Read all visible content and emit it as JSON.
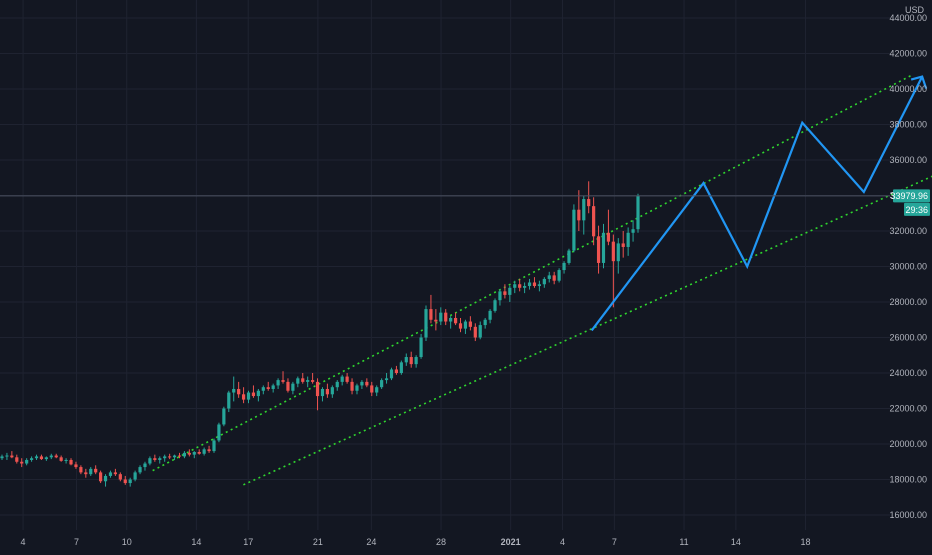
{
  "chart_data": {
    "type": "candlestick",
    "currency_label": "USD",
    "price_axis": {
      "ylim": [
        15000,
        44800
      ],
      "ticks": [
        16000,
        18000,
        20000,
        22000,
        24000,
        26000,
        28000,
        30000,
        32000,
        34000,
        36000,
        38000,
        40000,
        42000,
        44000
      ],
      "tick_labels": [
        "16000.00",
        "18000.00",
        "20000.00",
        "22000.00",
        "24000.00",
        "26000.00",
        "28000.00",
        "30000.00",
        "32000.00",
        "34000.00",
        "36000.00",
        "38000.00",
        "40000.00",
        "42000.00",
        "44000.00"
      ]
    },
    "time_axis": {
      "xlim": [
        0,
        54
      ],
      "ticks": [
        1,
        4,
        7,
        10,
        13,
        16,
        19,
        22,
        25,
        28,
        31,
        34,
        37,
        40,
        43,
        46,
        49,
        52
      ],
      "tick_labels": [
        "4",
        "7",
        "10",
        "14",
        "17",
        "21",
        "24",
        "28",
        "2021",
        "4",
        "7",
        "11",
        "14",
        "18"
      ]
    },
    "tick_label_positions_x": [
      1.3,
      4.6,
      7.7,
      12.0,
      15.2,
      19.5,
      22.8,
      27.1,
      31.4,
      34.6,
      37.8,
      42.1,
      45.3,
      49.6
    ],
    "last_price": {
      "value": 33979.96,
      "label": "33979.96",
      "countdown": "29:36"
    },
    "candles": [
      [
        19200,
        19400,
        19100,
        19300
      ],
      [
        19300,
        19500,
        19100,
        19350
      ],
      [
        19350,
        19600,
        19200,
        19250
      ],
      [
        19250,
        19400,
        18900,
        19000
      ],
      [
        19000,
        19200,
        18700,
        18900
      ],
      [
        18900,
        19200,
        18800,
        19100
      ],
      [
        19100,
        19300,
        19000,
        19200
      ],
      [
        19200,
        19400,
        19100,
        19300
      ],
      [
        19300,
        19400,
        19100,
        19150
      ],
      [
        19150,
        19300,
        19050,
        19250
      ],
      [
        19250,
        19450,
        19150,
        19350
      ],
      [
        19350,
        19450,
        19200,
        19250
      ],
      [
        19250,
        19350,
        19000,
        19050
      ],
      [
        19050,
        19200,
        18900,
        19100
      ],
      [
        19100,
        19200,
        18800,
        18850
      ],
      [
        18850,
        19000,
        18600,
        18700
      ],
      [
        18700,
        18800,
        18300,
        18400
      ],
      [
        18400,
        18600,
        18100,
        18300
      ],
      [
        18300,
        18700,
        18200,
        18600
      ],
      [
        18600,
        18800,
        18300,
        18400
      ],
      [
        18400,
        18500,
        17800,
        17900
      ],
      [
        17900,
        18300,
        17600,
        18200
      ],
      [
        18200,
        18500,
        18100,
        18400
      ],
      [
        18400,
        18600,
        18200,
        18300
      ],
      [
        18300,
        18400,
        17900,
        18000
      ],
      [
        18000,
        18200,
        17700,
        17800
      ],
      [
        17800,
        18100,
        17600,
        18000
      ],
      [
        18000,
        18500,
        17900,
        18400
      ],
      [
        18400,
        18800,
        18300,
        18700
      ],
      [
        18700,
        19000,
        18500,
        18900
      ],
      [
        18900,
        19300,
        18800,
        19200
      ],
      [
        19200,
        19400,
        19000,
        19100
      ],
      [
        19100,
        19300,
        18900,
        19200
      ],
      [
        19200,
        19400,
        19000,
        19300
      ],
      [
        19300,
        19450,
        19150,
        19250
      ],
      [
        19250,
        19400,
        19100,
        19350
      ],
      [
        19350,
        19500,
        19200,
        19300
      ],
      [
        19300,
        19600,
        19200,
        19500
      ],
      [
        19500,
        19700,
        19300,
        19400
      ],
      [
        19400,
        19600,
        19200,
        19550
      ],
      [
        19550,
        19700,
        19400,
        19450
      ],
      [
        19450,
        19800,
        19350,
        19700
      ],
      [
        19700,
        19900,
        19500,
        19600
      ],
      [
        19600,
        20300,
        19500,
        20200
      ],
      [
        20200,
        21200,
        20100,
        21100
      ],
      [
        21100,
        22100,
        21000,
        22000
      ],
      [
        22000,
        23000,
        21800,
        22900
      ],
      [
        22900,
        23800,
        22400,
        23100
      ],
      [
        23100,
        23500,
        22600,
        22800
      ],
      [
        22800,
        23200,
        22300,
        22500
      ],
      [
        22500,
        23000,
        22300,
        22900
      ],
      [
        22900,
        23300,
        22600,
        22700
      ],
      [
        22700,
        23100,
        22400,
        23000
      ],
      [
        23000,
        23300,
        22800,
        23200
      ],
      [
        23200,
        23500,
        23000,
        23100
      ],
      [
        23100,
        23400,
        22900,
        23300
      ],
      [
        23300,
        23700,
        23100,
        23600
      ],
      [
        23600,
        24100,
        23400,
        23500
      ],
      [
        23500,
        23700,
        22900,
        23000
      ],
      [
        23000,
        23500,
        22800,
        23400
      ],
      [
        23400,
        23800,
        23200,
        23700
      ],
      [
        23700,
        24000,
        23400,
        23500
      ],
      [
        23500,
        23800,
        23200,
        23600
      ],
      [
        23600,
        24000,
        23400,
        23500
      ],
      [
        23500,
        23700,
        21900,
        22700
      ],
      [
        22700,
        23200,
        22400,
        23100
      ],
      [
        23100,
        23400,
        22600,
        22800
      ],
      [
        22800,
        23300,
        22600,
        23200
      ],
      [
        23200,
        23600,
        23000,
        23500
      ],
      [
        23500,
        23900,
        23300,
        23800
      ],
      [
        23800,
        24000,
        23400,
        23500
      ],
      [
        23500,
        23700,
        22800,
        23000
      ],
      [
        23000,
        23400,
        22800,
        23300
      ],
      [
        23300,
        23600,
        23100,
        23500
      ],
      [
        23500,
        23700,
        23200,
        23300
      ],
      [
        23300,
        23500,
        22700,
        22900
      ],
      [
        22900,
        23300,
        22700,
        23200
      ],
      [
        23200,
        23700,
        23100,
        23600
      ],
      [
        23600,
        24000,
        23400,
        23700
      ],
      [
        23700,
        24300,
        23600,
        24200
      ],
      [
        24200,
        24400,
        23900,
        24000
      ],
      [
        24000,
        24700,
        23900,
        24600
      ],
      [
        24600,
        25100,
        24400,
        24900
      ],
      [
        24900,
        25200,
        24300,
        24500
      ],
      [
        24500,
        25000,
        24300,
        24900
      ],
      [
        24900,
        26200,
        24800,
        26000
      ],
      [
        26000,
        27800,
        25800,
        27600
      ],
      [
        27600,
        28400,
        26800,
        27000
      ],
      [
        27000,
        27600,
        26400,
        26900
      ],
      [
        26900,
        27700,
        26700,
        27400
      ],
      [
        27400,
        27600,
        26700,
        26900
      ],
      [
        26900,
        27200,
        26500,
        27100
      ],
      [
        27100,
        27400,
        26700,
        26800
      ],
      [
        26800,
        27100,
        26300,
        26500
      ],
      [
        26500,
        27000,
        26200,
        26900
      ],
      [
        26900,
        27200,
        26400,
        26600
      ],
      [
        26600,
        26800,
        25800,
        26000
      ],
      [
        26000,
        26900,
        25900,
        26700
      ],
      [
        26700,
        27100,
        26500,
        27000
      ],
      [
        27000,
        27600,
        26800,
        27500
      ],
      [
        27500,
        28200,
        27400,
        28100
      ],
      [
        28100,
        28700,
        27800,
        28600
      ],
      [
        28600,
        29000,
        28200,
        28400
      ],
      [
        28400,
        28900,
        28000,
        28800
      ],
      [
        28800,
        29200,
        28500,
        29000
      ],
      [
        29000,
        29300,
        28600,
        28800
      ],
      [
        28800,
        29100,
        28500,
        28900
      ],
      [
        28900,
        29300,
        28700,
        29100
      ],
      [
        29100,
        29400,
        28800,
        28900
      ],
      [
        28900,
        29200,
        28600,
        29000
      ],
      [
        29000,
        29400,
        28800,
        29300
      ],
      [
        29300,
        29700,
        29100,
        29500
      ],
      [
        29500,
        29700,
        29000,
        29200
      ],
      [
        29200,
        29900,
        29100,
        29800
      ],
      [
        29800,
        30300,
        29600,
        30200
      ],
      [
        30200,
        31000,
        30100,
        30900
      ],
      [
        30900,
        33500,
        30800,
        33200
      ],
      [
        33200,
        34300,
        32000,
        32600
      ],
      [
        32600,
        34000,
        31800,
        33800
      ],
      [
        33800,
        34800,
        33000,
        33400
      ],
      [
        33400,
        33900,
        31200,
        31700
      ],
      [
        31700,
        32300,
        29600,
        30200
      ],
      [
        30200,
        32400,
        29900,
        31900
      ],
      [
        31900,
        33200,
        31200,
        31400
      ],
      [
        31400,
        31800,
        27700,
        30300
      ],
      [
        30300,
        31600,
        29600,
        31300
      ],
      [
        31300,
        32000,
        30500,
        31100
      ],
      [
        31100,
        32200,
        30600,
        31900
      ],
      [
        31900,
        32600,
        31400,
        32100
      ],
      [
        32100,
        34100,
        31900,
        33980
      ]
    ],
    "channel_lines": [
      {
        "name": "",
        "color": "#2fd62f",
        "points": [
          [
            9.3,
            18500
          ],
          [
            56.2,
            40800
          ]
        ]
      },
      {
        "name": "",
        "color": "#2fd62f",
        "points": [
          [
            14.9,
            17700
          ],
          [
            58.2,
            35400
          ]
        ]
      }
    ],
    "projection_path": {
      "color": "#2196f3",
      "points": [
        [
          36.4,
          26400
        ],
        [
          43.3,
          34700
        ],
        [
          46.0,
          30000
        ],
        [
          49.4,
          38100
        ],
        [
          53.2,
          34200
        ],
        [
          56.8,
          40700
        ]
      ]
    }
  }
}
